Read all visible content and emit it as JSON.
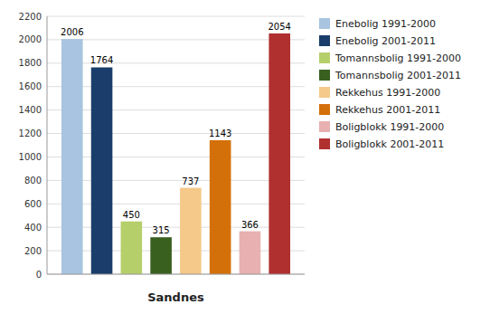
{
  "chart_data": {
    "type": "bar",
    "xlabel": "Sandnes",
    "categories": [
      null
    ],
    "series": [
      {
        "name": "Enebolig 1991-2000",
        "color": "#a8c4e0",
        "values": [
          2006
        ]
      },
      {
        "name": "Enebolig 2001-2011",
        "color": "#1a3d6b",
        "values": [
          1764
        ]
      },
      {
        "name": "Tomannsbolig 1991-2000",
        "color": "#b5cf6b",
        "values": [
          450
        ]
      },
      {
        "name": "Tomannsbolig 2001-2011",
        "color": "#3a6020",
        "values": [
          315
        ]
      },
      {
        "name": "Rekkehus 1991-2000",
        "color": "#f5c98a",
        "values": [
          737
        ]
      },
      {
        "name": "Rekkehus 2001-2011",
        "color": "#d4700a",
        "values": [
          1143
        ]
      },
      {
        "name": "Boligblokk 1991-2000",
        "color": "#e8b0b0",
        "values": [
          366
        ]
      },
      {
        "name": "Boligblokk 2001-2011",
        "color": "#b03030",
        "values": [
          2054
        ]
      }
    ],
    "ylim": [
      0,
      2200
    ],
    "yticks": [
      0,
      200,
      400,
      600,
      800,
      1000,
      1200,
      1400,
      1600,
      1800,
      2000,
      2200
    ],
    "grid": true,
    "legend": "right",
    "data_labels": true,
    "tick_labels": "y"
  }
}
